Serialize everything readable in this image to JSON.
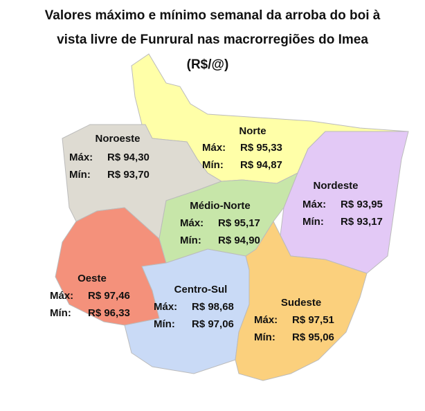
{
  "header": {
    "title_lines": [
      "Valores máximo e mínimo semanal da arroba do boi à",
      "vista livre de Funrural nas macrorregiões do Imea",
      "(R$/@)"
    ]
  },
  "regions": [
    {
      "name": "Noroeste",
      "max_label": "Máx:",
      "max": "R$ 94,30",
      "min_label": "Mín:",
      "min": "R$ 93,70"
    },
    {
      "name": "Norte",
      "max_label": "Máx:",
      "max": "R$ 95,33",
      "min_label": "Mín:",
      "min": "R$ 94,87"
    },
    {
      "name": "Nordeste",
      "max_label": "Máx:",
      "max": "R$ 93,95",
      "min_label": "Mín:",
      "min": "R$ 93,17"
    },
    {
      "name": "Médio-Norte",
      "max_label": "Máx:",
      "max": "R$ 95,17",
      "min_label": "Mín:",
      "min": "R$ 94,90"
    },
    {
      "name": "Oeste",
      "max_label": "Máx:",
      "max": "R$ 97,46",
      "min_label": "Mín:",
      "min": "R$ 96,33"
    },
    {
      "name": "Centro-Sul",
      "max_label": "Máx:",
      "max": "R$ 98,68",
      "min_label": "Mín:",
      "min": "R$ 97,06"
    },
    {
      "name": "Sudeste",
      "max_label": "Máx:",
      "max": "R$ 97,51",
      "min_label": "Mín:",
      "min": "R$ 95,06"
    }
  ]
}
